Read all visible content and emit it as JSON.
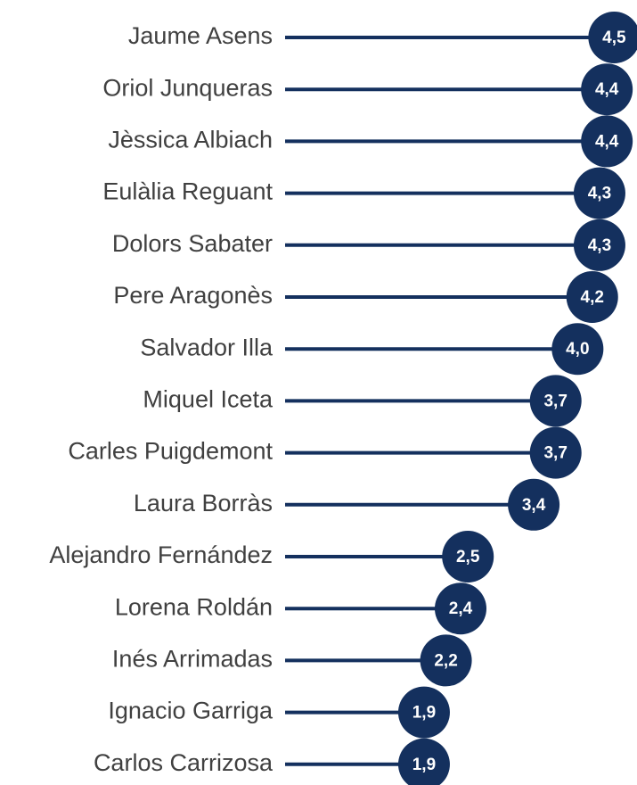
{
  "chart_data": {
    "type": "lollipop",
    "categories": [
      "Jaume Asens",
      "Oriol Junqueras",
      "Jèssica Albiach",
      "Eulàlia Reguant",
      "Dolors Sabater",
      "Pere Aragonès",
      "Salvador Illa",
      "Miquel Iceta",
      "Carles Puigdemont",
      "Laura Borràs",
      "Alejandro Fernández",
      "Lorena Roldán",
      "Inés Arrimadas",
      "Ignacio Garriga",
      "Carlos Carrizosa"
    ],
    "values": [
      4.5,
      4.4,
      4.4,
      4.3,
      4.3,
      4.2,
      4.0,
      3.7,
      3.7,
      3.4,
      2.5,
      2.4,
      2.2,
      1.9,
      1.9
    ],
    "value_labels": [
      "4,5",
      "4,4",
      "4,4",
      "4,3",
      "4,3",
      "4,2",
      "4,0",
      "3,7",
      "3,7",
      "3,4",
      "2,5",
      "2,4",
      "2,2",
      "1,9",
      "1,9"
    ],
    "color": "#14305e",
    "xlim": [
      0,
      4.8
    ]
  }
}
